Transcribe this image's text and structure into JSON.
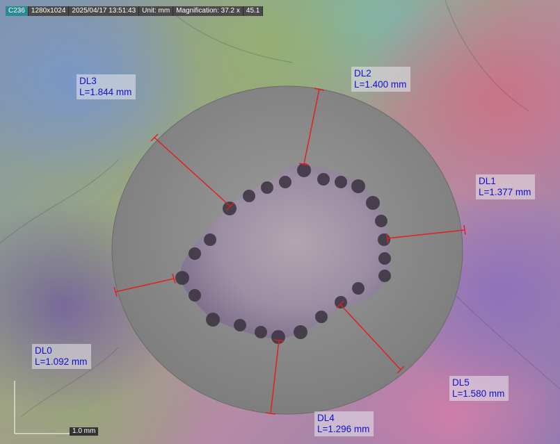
{
  "status_bar": {
    "camera_id": "C236",
    "resolution": "1280x1024",
    "timestamp": "2025/04/17 13:51:43",
    "unit": "Unit: mm",
    "magnification": "Magnification:  37.2 x",
    "extra": "45.1"
  },
  "measurements": [
    {
      "name": "DL0",
      "length": "L=1.092 mm"
    },
    {
      "name": "DL1",
      "length": "L=1.377 mm"
    },
    {
      "name": "DL2",
      "length": "L=1.400 mm"
    },
    {
      "name": "DL3",
      "length": "L=1.844 mm"
    },
    {
      "name": "DL4",
      "length": "L=1.296 mm"
    },
    {
      "name": "DL5",
      "length": "L=1.580 mm"
    }
  ],
  "scale_bar": {
    "label": "1.0 mm"
  },
  "colors": {
    "measurement_line": "#e02020",
    "label_text": "#1010d0",
    "sample_disk": "#8c8c8c"
  }
}
